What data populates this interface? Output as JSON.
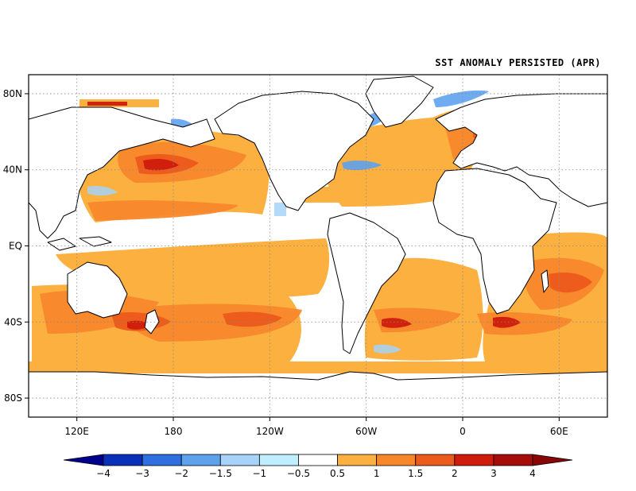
{
  "map": {
    "title": "SST ANOMALY PERSISTED (APR)",
    "lat_labels": [
      "80N",
      "40N",
      "EQ",
      "40S",
      "80S"
    ],
    "lon_labels": [
      "120E",
      "180",
      "120W",
      "60W",
      "0",
      "60E"
    ],
    "projection": "cylindrical equidistant",
    "lon_range": [
      90,
      450
    ],
    "lat_range": [
      -90,
      90
    ]
  },
  "colorbar": {
    "bounds": [
      "-4",
      "-3",
      "-2",
      "-1.5",
      "-1",
      "-0.5",
      "0.5",
      "1",
      "1.5",
      "2",
      "3",
      "4"
    ],
    "colors": [
      "#00008c",
      "#0a2fb8",
      "#2f6fe0",
      "#5ea2ee",
      "#a6d3f7",
      "#bfefff",
      "#ffffff",
      "#fbb040",
      "#f8872c",
      "#ec5a1c",
      "#cf1c0c",
      "#a50c0a",
      "#8a0606"
    ]
  }
}
